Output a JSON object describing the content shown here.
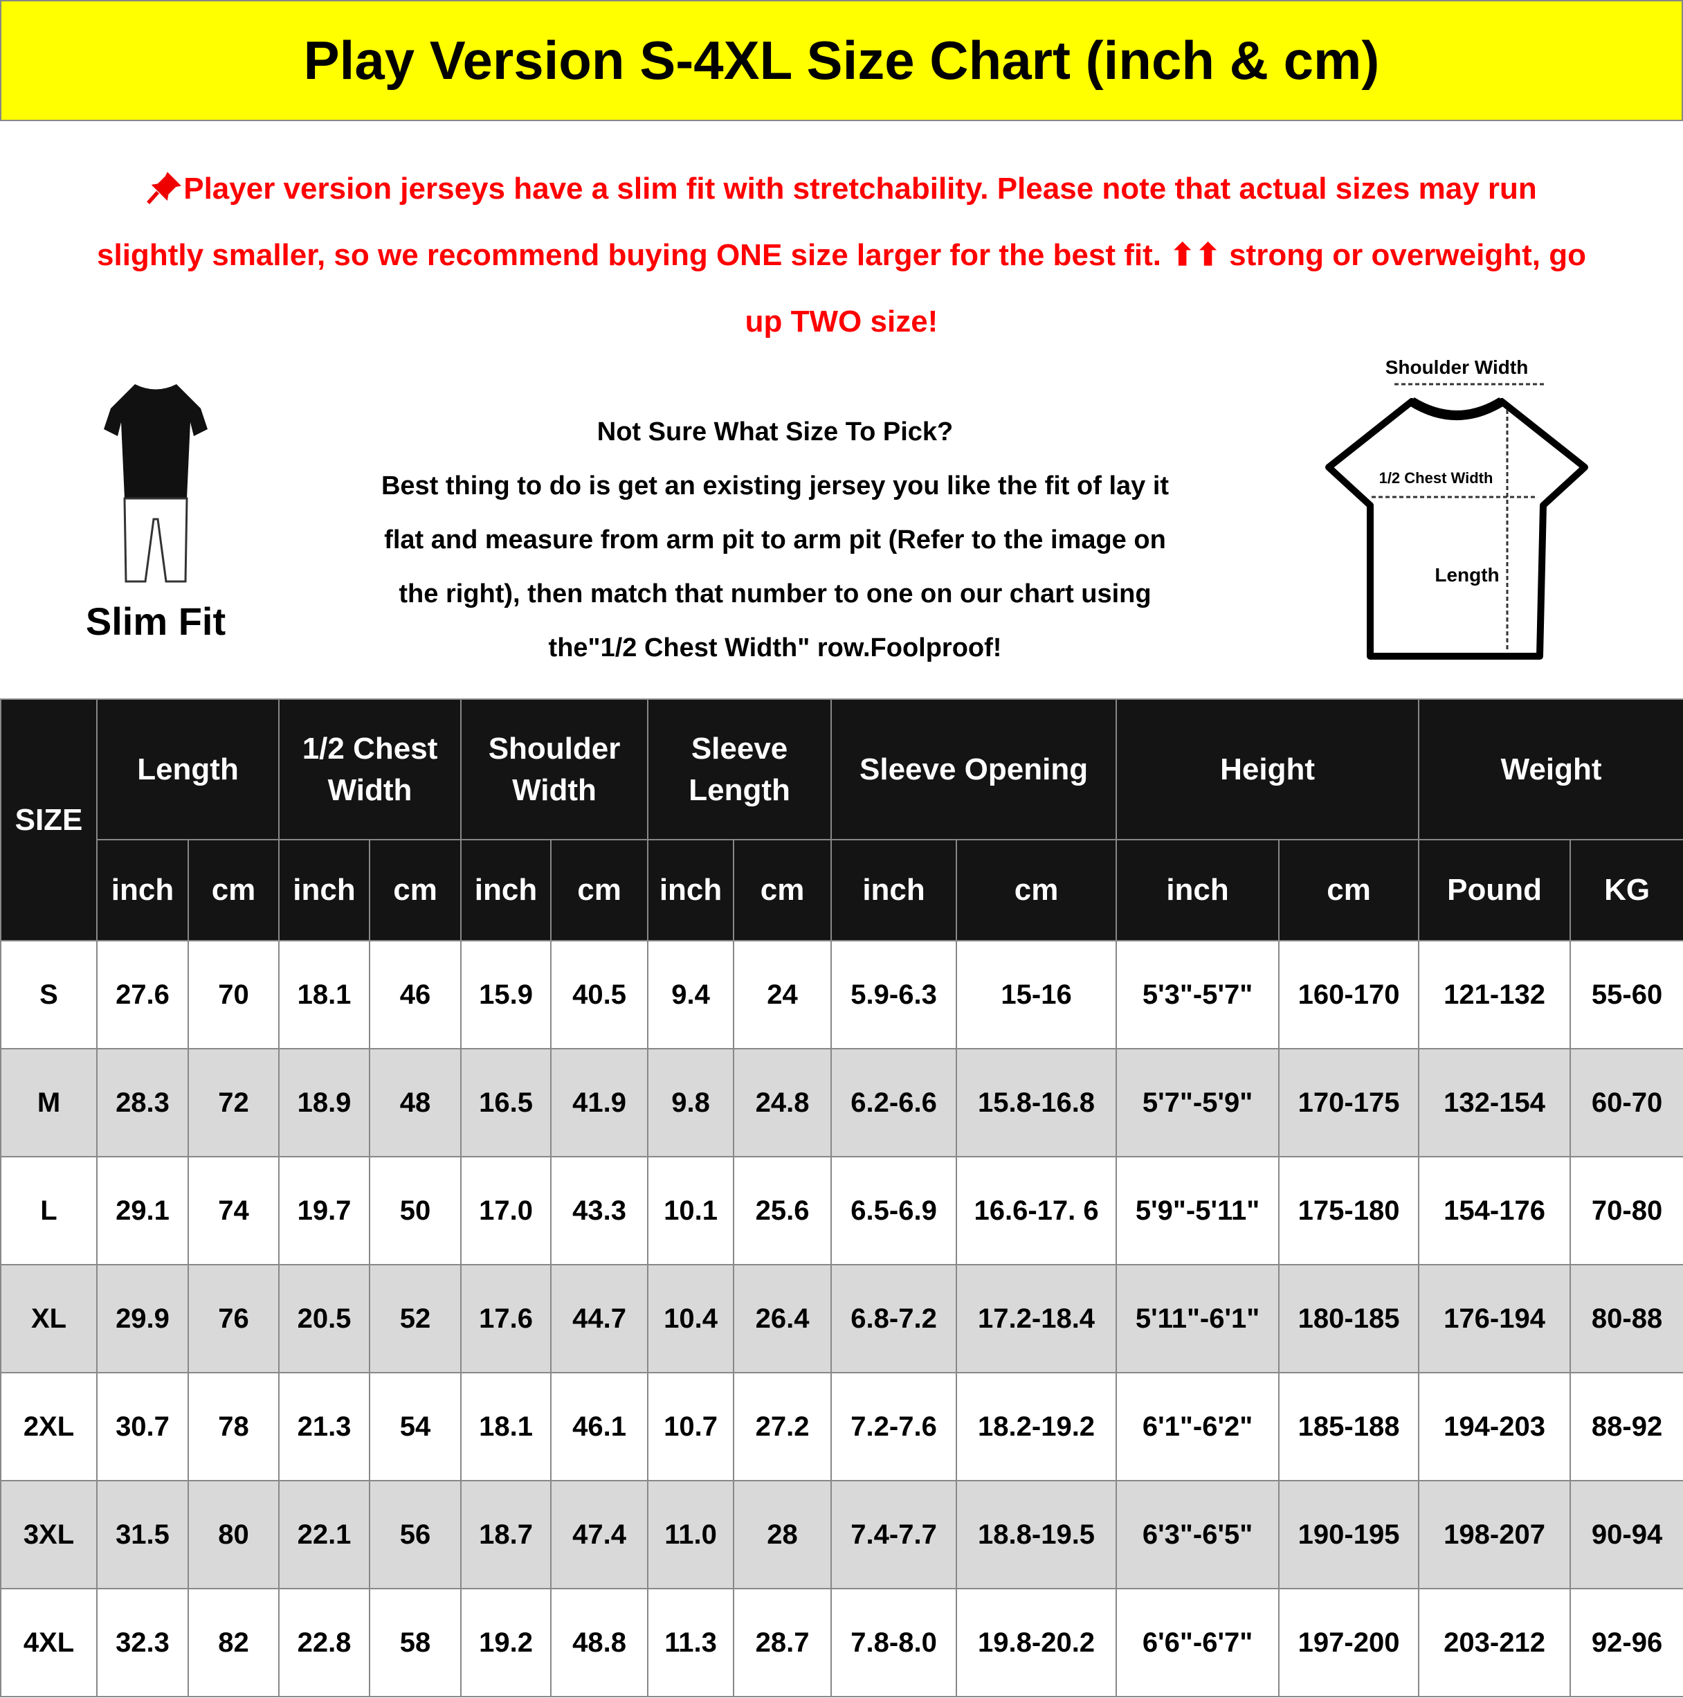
{
  "title": "Play Version S-4XL Size Chart (inch & cm)",
  "notice": {
    "icon": "pushpin-icon",
    "lines": [
      "Player version jerseys have a slim fit with stretchability. Please note that actual sizes may run",
      "slightly smaller, so we recommend buying ONE size larger for the best fit. ⬆⬆ strong or overweight, go",
      "up TWO size!"
    ],
    "color": "#ff0000"
  },
  "slim_fit_label": "Slim Fit",
  "help": {
    "heading": "Not Sure What Size To Pick?",
    "lines": [
      "Best thing to do is get an existing jersey you like the fit of lay it",
      "flat and measure from arm pit to arm pit (Refer to the image on",
      "the right), then match that number to one on our chart using",
      "the\"1/2 Chest Width\" row.Foolproof!"
    ]
  },
  "diagram": {
    "shoulder": "Shoulder Width",
    "chest": "1/2 Chest Width",
    "length": "Length"
  },
  "table": {
    "size_header": "SIZE",
    "groups": [
      "Length",
      "1/2 Chest Width",
      "Shoulder Width",
      "Sleeve Length",
      "Sleeve Opening",
      "Height",
      "Weight"
    ],
    "units": [
      "inch",
      "cm",
      "inch",
      "cm",
      "inch",
      "cm",
      "inch",
      "cm",
      "inch",
      "cm",
      "inch",
      "cm",
      "Pound",
      "KG"
    ],
    "rows": [
      [
        "S",
        "27.6",
        "70",
        "18.1",
        "46",
        "15.9",
        "40.5",
        "9.4",
        "24",
        "5.9-6.3",
        "15-16",
        "5'3\"-5'7\"",
        "160-170",
        "121-132",
        "55-60"
      ],
      [
        "M",
        "28.3",
        "72",
        "18.9",
        "48",
        "16.5",
        "41.9",
        "9.8",
        "24.8",
        "6.2-6.6",
        "15.8-16.8",
        "5'7\"-5'9\"",
        "170-175",
        "132-154",
        "60-70"
      ],
      [
        "L",
        "29.1",
        "74",
        "19.7",
        "50",
        "17.0",
        "43.3",
        "10.1",
        "25.6",
        "6.5-6.9",
        "16.6-17. 6",
        "5'9\"-5'11\"",
        "175-180",
        "154-176",
        "70-80"
      ],
      [
        "XL",
        "29.9",
        "76",
        "20.5",
        "52",
        "17.6",
        "44.7",
        "10.4",
        "26.4",
        "6.8-7.2",
        "17.2-18.4",
        "5'11\"-6'1\"",
        "180-185",
        "176-194",
        "80-88"
      ],
      [
        "2XL",
        "30.7",
        "78",
        "21.3",
        "54",
        "18.1",
        "46.1",
        "10.7",
        "27.2",
        "7.2-7.6",
        "18.2-19.2",
        "6'1\"-6'2\"",
        "185-188",
        "194-203",
        "88-92"
      ],
      [
        "3XL",
        "31.5",
        "80",
        "22.1",
        "56",
        "18.7",
        "47.4",
        "11.0",
        "28",
        "7.4-7.7",
        "18.8-19.5",
        "6'3\"-6'5\"",
        "190-195",
        "198-207",
        "90-94"
      ],
      [
        "4XL",
        "32.3",
        "82",
        "22.8",
        "58",
        "19.2",
        "48.8",
        "11.3",
        "28.7",
        "7.8-8.0",
        "19.8-20.2",
        "6'6\"-6'7\"",
        "197-200",
        "203-212",
        "92-96"
      ]
    ]
  }
}
